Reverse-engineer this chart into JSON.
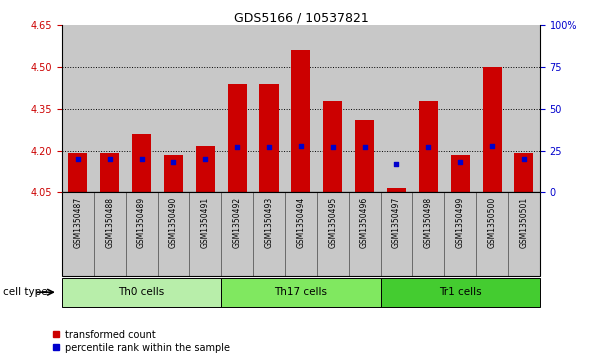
{
  "title": "GDS5166 / 10537821",
  "samples": [
    "GSM1350487",
    "GSM1350488",
    "GSM1350489",
    "GSM1350490",
    "GSM1350491",
    "GSM1350492",
    "GSM1350493",
    "GSM1350494",
    "GSM1350495",
    "GSM1350496",
    "GSM1350497",
    "GSM1350498",
    "GSM1350499",
    "GSM1350500",
    "GSM1350501"
  ],
  "transformed_counts": [
    4.19,
    4.19,
    4.26,
    4.185,
    4.215,
    4.44,
    4.44,
    4.56,
    4.38,
    4.31,
    4.065,
    4.38,
    4.185,
    4.5,
    4.19
  ],
  "percentile_ranks": [
    20,
    20,
    20,
    18,
    20,
    27,
    27,
    28,
    27,
    27,
    17,
    27,
    18,
    28,
    20
  ],
  "cell_groups": [
    {
      "label": "Th0 cells",
      "start": 0,
      "end": 5,
      "color": "#b8eeaa"
    },
    {
      "label": "Th17 cells",
      "start": 5,
      "end": 10,
      "color": "#80e860"
    },
    {
      "label": "Tr1 cells",
      "start": 10,
      "end": 15,
      "color": "#44cc30"
    }
  ],
  "ylim_left": [
    4.05,
    4.65
  ],
  "ylim_right": [
    0,
    100
  ],
  "yticks_left": [
    4.05,
    4.2,
    4.35,
    4.5,
    4.65
  ],
  "yticks_right": [
    0,
    25,
    50,
    75,
    100
  ],
  "bar_color": "#cc0000",
  "dot_color": "#0000cc",
  "bar_bottom": 4.05,
  "bar_width": 0.6,
  "legend_items": [
    "transformed count",
    "percentile rank within the sample"
  ],
  "cell_type_label": "cell type",
  "grid_yticks": [
    4.2,
    4.35,
    4.5
  ],
  "bg_color": "#c8c8c8",
  "label_bg": "#c8c8c8",
  "fig_bg": "#ffffff"
}
